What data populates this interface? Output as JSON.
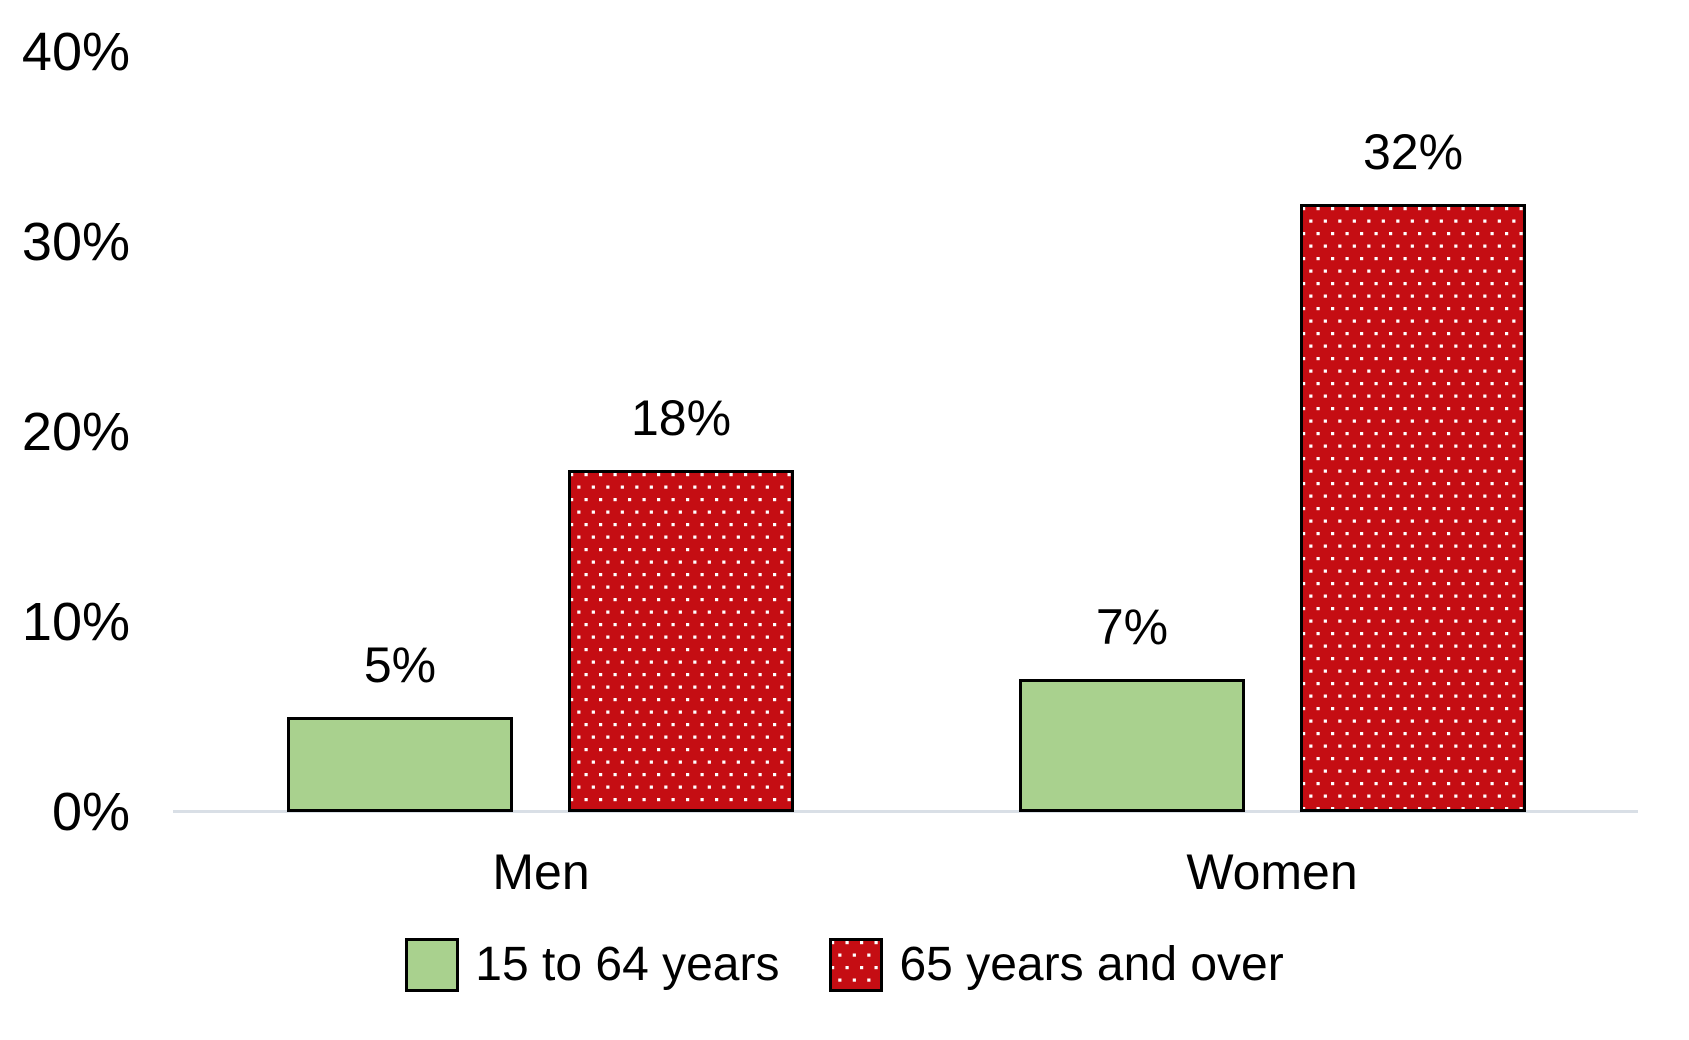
{
  "chart_data": {
    "type": "bar",
    "title": "",
    "xlabel": "",
    "ylabel": "",
    "categories": [
      "Men",
      "Women"
    ],
    "series": [
      {
        "name": "15 to 64 years",
        "values": [
          5,
          7
        ],
        "labels": [
          "5%",
          "7%"
        ],
        "fill": "#A9D18E",
        "pattern": "solid"
      },
      {
        "name": "65 years and over",
        "values": [
          18,
          32
        ],
        "labels": [
          "18%",
          "32%"
        ],
        "fill": "#C50D13",
        "pattern": "white-dots"
      }
    ],
    "y_ticks": [
      {
        "value": 0,
        "label": "0%"
      },
      {
        "value": 10,
        "label": "10%"
      },
      {
        "value": 20,
        "label": "20%"
      },
      {
        "value": 30,
        "label": "30%"
      },
      {
        "value": 40,
        "label": "40%"
      }
    ],
    "ylim": [
      0,
      40
    ],
    "grid": false,
    "legend_position": "bottom",
    "axis_line_color": "#D9DFE6",
    "bar_border_color": "#000000",
    "dot_color": "#FFFFFF",
    "text_color": "#000000",
    "background": "#FFFFFF"
  }
}
